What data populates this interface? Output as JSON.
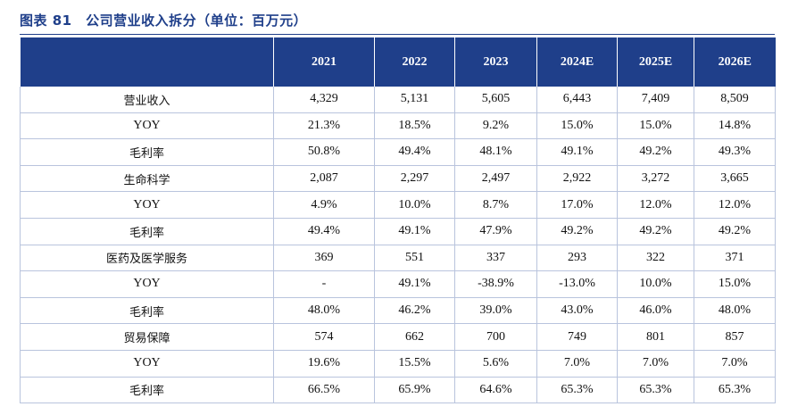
{
  "title": "图表 81　公司营业收入拆分（单位：百万元）",
  "header": [
    "",
    "2021",
    "2022",
    "2023",
    "2024E",
    "2025E",
    "2026E"
  ],
  "rows": [
    {
      "label": "营业收入",
      "type": "main",
      "values": [
        "4,329",
        "5,131",
        "5,605",
        "6,443",
        "7,409",
        "8,509"
      ]
    },
    {
      "label": "YOY",
      "type": "sub-en",
      "values": [
        "21.3%",
        "18.5%",
        "9.2%",
        "15.0%",
        "15.0%",
        "14.8%"
      ]
    },
    {
      "label": "毛利率",
      "type": "sub",
      "values": [
        "50.8%",
        "49.4%",
        "48.1%",
        "49.1%",
        "49.2%",
        "49.3%"
      ]
    },
    {
      "label": "生命科学",
      "type": "main",
      "values": [
        "2,087",
        "2,297",
        "2,497",
        "2,922",
        "3,272",
        "3,665"
      ]
    },
    {
      "label": "YOY",
      "type": "sub-en",
      "values": [
        "4.9%",
        "10.0%",
        "8.7%",
        "17.0%",
        "12.0%",
        "12.0%"
      ]
    },
    {
      "label": "毛利率",
      "type": "sub",
      "values": [
        "49.4%",
        "49.1%",
        "47.9%",
        "49.2%",
        "49.2%",
        "49.2%"
      ]
    },
    {
      "label": "医药及医学服务",
      "type": "main",
      "values": [
        "369",
        "551",
        "337",
        "293",
        "322",
        "371"
      ]
    },
    {
      "label": "YOY",
      "type": "sub-en",
      "values": [
        "-",
        "49.1%",
        "-38.9%",
        "-13.0%",
        "10.0%",
        "15.0%"
      ]
    },
    {
      "label": "毛利率",
      "type": "sub",
      "values": [
        "48.0%",
        "46.2%",
        "39.0%",
        "43.0%",
        "46.0%",
        "48.0%"
      ]
    },
    {
      "label": "贸易保障",
      "type": "main",
      "values": [
        "574",
        "662",
        "700",
        "749",
        "801",
        "857"
      ]
    },
    {
      "label": "YOY",
      "type": "sub-en",
      "values": [
        "19.6%",
        "15.5%",
        "5.6%",
        "7.0%",
        "7.0%",
        "7.0%"
      ]
    },
    {
      "label": "毛利率",
      "type": "sub",
      "values": [
        "66.5%",
        "65.9%",
        "64.6%",
        "65.3%",
        "65.3%",
        "65.3%"
      ]
    }
  ]
}
